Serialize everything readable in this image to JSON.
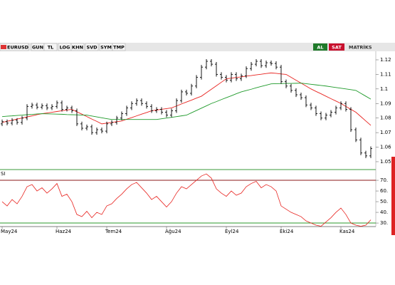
{
  "toolbar": {
    "symbol": "EURUSD",
    "buttons": [
      "GUN",
      "TL",
      "LOG",
      "KHN",
      "SVD",
      "SYM",
      "TMP"
    ],
    "buy": "AL",
    "sell": "SAT",
    "brand": "MATRİKS"
  },
  "chart_data": [
    {
      "type": "ohlc",
      "color": "#000000",
      "open": [
        1.076,
        1.0775,
        1.0765,
        1.0785,
        1.077,
        1.08,
        1.088,
        1.089,
        1.0875,
        1.0885,
        1.087,
        1.088,
        1.0905,
        1.086,
        1.087,
        1.085,
        1.076,
        1.073,
        1.074,
        1.07,
        1.072,
        1.071,
        1.076,
        1.077,
        1.08,
        1.083,
        1.087,
        1.09,
        1.092,
        1.09,
        1.088,
        1.085,
        1.086,
        1.084,
        1.082,
        1.085,
        1.092,
        1.098,
        1.097,
        1.102,
        1.108,
        1.115,
        1.119,
        1.117,
        1.11,
        1.108,
        1.106,
        1.11,
        1.107,
        1.109,
        1.114,
        1.117,
        1.119,
        1.116,
        1.118,
        1.1175,
        1.115,
        1.105,
        1.102,
        1.099,
        1.096,
        1.094,
        1.089,
        1.087,
        1.083,
        1.08,
        1.082,
        1.084,
        1.087,
        1.09,
        1.086,
        1.072,
        1.065,
        1.056,
        1.054
      ],
      "high": [
        1.079,
        1.079,
        1.08,
        1.08,
        1.0815,
        1.0895,
        1.0905,
        1.0905,
        1.09,
        1.09,
        1.0895,
        1.092,
        1.092,
        1.0885,
        1.0885,
        1.0865,
        1.0775,
        1.0755,
        1.0755,
        1.0735,
        1.0735,
        1.0775,
        1.0785,
        1.0815,
        1.0845,
        1.0885,
        1.0915,
        1.0935,
        1.0935,
        1.0915,
        1.0895,
        1.0875,
        1.0875,
        1.0855,
        1.0865,
        1.0935,
        1.0995,
        1.0995,
        1.1035,
        1.1095,
        1.1165,
        1.1205,
        1.1205,
        1.1185,
        1.1115,
        1.1095,
        1.1115,
        1.1115,
        1.1105,
        1.1155,
        1.1185,
        1.1205,
        1.1205,
        1.1195,
        1.1195,
        1.119,
        1.1165,
        1.1065,
        1.1035,
        1.1005,
        1.0975,
        1.0955,
        1.0905,
        1.0885,
        1.0845,
        1.0835,
        1.0855,
        1.0885,
        1.0915,
        1.0915,
        1.0875,
        1.0735,
        1.0665,
        1.0575,
        1.0605
      ],
      "low": [
        1.0745,
        1.075,
        1.075,
        1.0755,
        1.0755,
        1.0785,
        1.0865,
        1.086,
        1.086,
        1.0855,
        1.0855,
        1.0865,
        1.0845,
        1.0845,
        1.0835,
        1.0745,
        1.0715,
        1.0715,
        1.0685,
        1.0685,
        1.0695,
        1.0695,
        1.0745,
        1.0755,
        1.0785,
        1.0815,
        1.0855,
        1.0885,
        1.0885,
        1.0865,
        1.0835,
        1.0835,
        1.0825,
        1.0805,
        1.0805,
        1.0835,
        1.0905,
        1.0955,
        1.0955,
        1.1005,
        1.1065,
        1.1135,
        1.1155,
        1.1085,
        1.1065,
        1.1045,
        1.1045,
        1.1055,
        1.1055,
        1.1075,
        1.1125,
        1.1155,
        1.1145,
        1.1145,
        1.116,
        1.1135,
        1.1035,
        1.1005,
        1.0975,
        1.0945,
        1.0925,
        1.0875,
        1.0855,
        1.0815,
        1.0785,
        1.0785,
        1.0805,
        1.0825,
        1.0855,
        1.0845,
        1.0705,
        1.0635,
        1.0545,
        1.0525,
        1.0525
      ],
      "close": [
        1.0775,
        1.0765,
        1.0785,
        1.077,
        1.08,
        1.088,
        1.089,
        1.0875,
        1.0885,
        1.087,
        1.088,
        1.0905,
        1.086,
        1.087,
        1.085,
        1.076,
        1.073,
        1.074,
        1.07,
        1.072,
        1.071,
        1.076,
        1.077,
        1.08,
        1.083,
        1.087,
        1.09,
        1.092,
        1.09,
        1.088,
        1.085,
        1.086,
        1.084,
        1.082,
        1.085,
        1.092,
        1.098,
        1.097,
        1.102,
        1.108,
        1.115,
        1.119,
        1.117,
        1.11,
        1.108,
        1.106,
        1.11,
        1.107,
        1.109,
        1.114,
        1.117,
        1.119,
        1.116,
        1.118,
        1.1175,
        1.115,
        1.105,
        1.102,
        1.099,
        1.096,
        1.094,
        1.089,
        1.087,
        1.083,
        1.08,
        1.082,
        1.084,
        1.087,
        1.09,
        1.086,
        1.072,
        1.065,
        1.056,
        1.054,
        1.059
      ],
      "lines": [
        {
          "color": "#e8231f",
          "values": [
            1.077,
            1.0778,
            1.0785,
            1.0793,
            1.08,
            1.0808,
            1.0815,
            1.0823,
            1.083,
            1.0835,
            1.084,
            1.0845,
            1.085,
            1.0855,
            1.086,
            1.0843,
            1.0827,
            1.081,
            1.0793,
            1.0777,
            1.076,
            1.0765,
            1.077,
            1.0775,
            1.078,
            1.0792,
            1.0803,
            1.0815,
            1.0827,
            1.0838,
            1.085,
            1.0855,
            1.086,
            1.0865,
            1.087,
            1.0883,
            1.0897,
            1.091,
            1.0923,
            1.0937,
            1.095,
            1.0974,
            1.0998,
            1.1022,
            1.1046,
            1.107,
            1.1074,
            1.1079,
            1.1083,
            1.1088,
            1.1092,
            1.1097,
            1.1101,
            1.1106,
            1.111,
            1.1107,
            1.1103,
            1.11,
            1.108,
            1.106,
            1.104,
            1.102,
            1.1,
            1.0983,
            1.0967,
            1.095,
            1.0933,
            1.0917,
            1.09,
            1.088,
            1.086,
            1.084,
            1.081,
            1.078,
            1.075
          ]
        },
        {
          "color": "#1e9a2a",
          "values": [
            1.081,
            1.0813,
            1.0815,
            1.0818,
            1.082,
            1.0823,
            1.0825,
            1.0828,
            1.083,
            1.0829,
            1.0828,
            1.0827,
            1.0826,
            1.0824,
            1.0823,
            1.0822,
            1.0821,
            1.082,
            1.0814,
            1.0808,
            1.0802,
            1.0796,
            1.079,
            1.079,
            1.079,
            1.079,
            1.079,
            1.079,
            1.079,
            1.079,
            1.079,
            1.079,
            1.0795,
            1.08,
            1.0805,
            1.081,
            1.0815,
            1.082,
            1.0836,
            1.0852,
            1.0868,
            1.0884,
            1.09,
            1.0913,
            1.0927,
            1.094,
            1.0953,
            1.0967,
            1.098,
            1.0989,
            1.0998,
            1.1008,
            1.1017,
            1.1026,
            1.1035,
            1.1036,
            1.1037,
            1.1038,
            1.1038,
            1.1039,
            1.104,
            1.1036,
            1.1032,
            1.1028,
            1.1024,
            1.102,
            1.1015,
            1.101,
            1.1005,
            1.1,
            1.0995,
            1.099,
            1.097,
            1.095,
            1.093
          ]
        }
      ],
      "ylim": [
        1.0446,
        1.1244
      ],
      "yticks": [
        1.05,
        1.06,
        1.07,
        1.08,
        1.09,
        1.1,
        1.11,
        1.12
      ]
    },
    {
      "type": "line",
      "label": "SI",
      "color": "#e8231f",
      "categories": [
        "May24",
        null,
        null,
        null,
        null,
        null,
        null,
        null,
        null,
        null,
        null,
        "Haz24",
        null,
        null,
        null,
        null,
        null,
        null,
        null,
        null,
        null,
        "Tem24",
        null,
        null,
        null,
        null,
        null,
        null,
        null,
        null,
        null,
        null,
        null,
        "Ağu24",
        null,
        null,
        null,
        null,
        null,
        null,
        null,
        null,
        null,
        null,
        null,
        "Eyl24",
        null,
        null,
        null,
        null,
        null,
        null,
        null,
        null,
        null,
        null,
        "Eki24",
        null,
        null,
        null,
        null,
        null,
        null,
        null,
        null,
        null,
        null,
        null,
        "Kas24",
        null,
        null,
        null,
        null,
        null,
        null
      ],
      "values": [
        50,
        46,
        52,
        48,
        55,
        64,
        66,
        60,
        63,
        58,
        62,
        67,
        55,
        57,
        50,
        38,
        36,
        41,
        35,
        40,
        38,
        46,
        48,
        53,
        57,
        62,
        66,
        68,
        63,
        58,
        52,
        55,
        50,
        45,
        50,
        58,
        64,
        62,
        66,
        70,
        74,
        76,
        72,
        62,
        58,
        55,
        60,
        56,
        58,
        64,
        67,
        69,
        63,
        66,
        64,
        60,
        46,
        43,
        40,
        38,
        36,
        32,
        30,
        28,
        27,
        31,
        35,
        40,
        44,
        38,
        30,
        28,
        27,
        28,
        33
      ],
      "hlines": [
        {
          "value": 70,
          "color": "#8b1a1a"
        },
        {
          "value": 30,
          "color": "#2a9a2a"
        }
      ],
      "ylim": [
        26.7,
        78.7
      ],
      "yticks": [
        {
          "value": 30,
          "label": "30."
        },
        {
          "value": 40,
          "label": "40."
        },
        {
          "value": 50,
          "label": "50."
        },
        {
          "value": 60,
          "label": "60."
        },
        {
          "value": 70,
          "label": "70."
        }
      ]
    }
  ]
}
